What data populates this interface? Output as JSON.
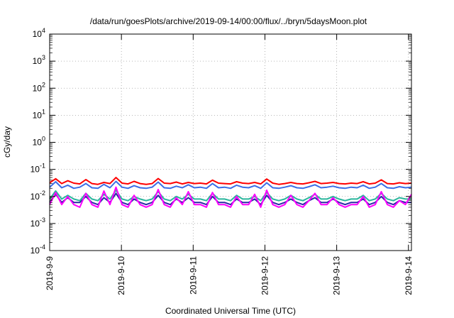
{
  "chart_data": {
    "type": "line",
    "title": "/data/run/goesPlots/archive/2019-09-14/00:00/flux/../bryn/5daysMoon.plot",
    "xlabel": "Coordinated Universal Time (UTC)",
    "ylabel": "cGy/day",
    "y_scale": "log",
    "grid": true,
    "ylim": [
      0.0001,
      10000
    ],
    "y_ticks": [
      {
        "value": 0.0001,
        "base": "10",
        "exp": "-4"
      },
      {
        "value": 0.001,
        "base": "10",
        "exp": "-3"
      },
      {
        "value": 0.01,
        "base": "10",
        "exp": "-2"
      },
      {
        "value": 0.1,
        "base": "10",
        "exp": "-1"
      },
      {
        "value": 1,
        "base": "10",
        "exp": "0"
      },
      {
        "value": 10,
        "base": "10",
        "exp": "1"
      },
      {
        "value": 100,
        "base": "10",
        "exp": "2"
      },
      {
        "value": 1000,
        "base": "10",
        "exp": "3"
      },
      {
        "value": 10000,
        "base": "10",
        "exp": "4"
      }
    ],
    "xlim": [
      "2019-09-09",
      "2019-09-14 01:00"
    ],
    "x_ticks": [
      "2019-9-9",
      "2019-9-10",
      "2019-9-11",
      "2019-9-12",
      "2019-9-13",
      "2019-9-14"
    ],
    "series": [
      {
        "color": "#ff0000",
        "values": [
          0.032,
          0.045,
          0.03,
          0.038,
          0.031,
          0.029,
          0.042,
          0.03,
          0.028,
          0.033,
          0.03,
          0.05,
          0.031,
          0.029,
          0.036,
          0.03,
          0.028,
          0.03,
          0.046,
          0.031,
          0.03,
          0.034,
          0.029,
          0.033,
          0.03,
          0.031,
          0.029,
          0.04,
          0.031,
          0.03,
          0.029,
          0.035,
          0.031,
          0.03,
          0.033,
          0.029,
          0.044,
          0.031,
          0.028,
          0.03,
          0.033,
          0.03,
          0.029,
          0.032,
          0.036,
          0.03,
          0.031,
          0.033,
          0.03,
          0.029,
          0.031,
          0.03,
          0.035,
          0.029,
          0.031,
          0.041,
          0.03,
          0.029,
          0.032,
          0.03,
          0.031
        ]
      },
      {
        "color": "#3c6ee6",
        "values": [
          0.022,
          0.035,
          0.021,
          0.026,
          0.02,
          0.022,
          0.03,
          0.021,
          0.02,
          0.028,
          0.021,
          0.036,
          0.022,
          0.02,
          0.025,
          0.021,
          0.02,
          0.022,
          0.034,
          0.021,
          0.02,
          0.024,
          0.021,
          0.027,
          0.021,
          0.022,
          0.02,
          0.03,
          0.021,
          0.022,
          0.02,
          0.026,
          0.022,
          0.021,
          0.025,
          0.02,
          0.032,
          0.021,
          0.02,
          0.022,
          0.025,
          0.021,
          0.02,
          0.023,
          0.027,
          0.021,
          0.022,
          0.024,
          0.021,
          0.02,
          0.022,
          0.021,
          0.026,
          0.02,
          0.022,
          0.03,
          0.021,
          0.02,
          0.023,
          0.021,
          0.022
        ]
      },
      {
        "color": "#2ab59c",
        "values": [
          0.008,
          0.016,
          0.008,
          0.011,
          0.008,
          0.007,
          0.013,
          0.008,
          0.007,
          0.012,
          0.008,
          0.017,
          0.008,
          0.007,
          0.01,
          0.008,
          0.007,
          0.008,
          0.015,
          0.008,
          0.007,
          0.01,
          0.008,
          0.012,
          0.008,
          0.008,
          0.007,
          0.013,
          0.008,
          0.008,
          0.007,
          0.011,
          0.008,
          0.008,
          0.01,
          0.007,
          0.014,
          0.008,
          0.007,
          0.008,
          0.011,
          0.008,
          0.007,
          0.009,
          0.012,
          0.008,
          0.008,
          0.01,
          0.008,
          0.007,
          0.008,
          0.008,
          0.011,
          0.007,
          0.008,
          0.013,
          0.008,
          0.007,
          0.009,
          0.008,
          0.008
        ]
      },
      {
        "color": "#2a2aa5",
        "values": [
          0.006,
          0.012,
          0.006,
          0.009,
          0.006,
          0.006,
          0.01,
          0.006,
          0.005,
          0.009,
          0.006,
          0.013,
          0.006,
          0.005,
          0.008,
          0.006,
          0.005,
          0.006,
          0.011,
          0.006,
          0.005,
          0.008,
          0.006,
          0.009,
          0.006,
          0.006,
          0.005,
          0.01,
          0.006,
          0.006,
          0.005,
          0.008,
          0.006,
          0.006,
          0.008,
          0.005,
          0.011,
          0.006,
          0.005,
          0.006,
          0.008,
          0.006,
          0.005,
          0.007,
          0.009,
          0.006,
          0.006,
          0.008,
          0.006,
          0.005,
          0.006,
          0.006,
          0.008,
          0.005,
          0.006,
          0.01,
          0.006,
          0.005,
          0.007,
          0.006,
          0.006
        ]
      },
      {
        "color": "#ff00ff",
        "values": [
          0.005,
          0.014,
          0.005,
          0.01,
          0.005,
          0.004,
          0.013,
          0.005,
          0.004,
          0.016,
          0.005,
          0.022,
          0.005,
          0.004,
          0.011,
          0.005,
          0.004,
          0.005,
          0.018,
          0.005,
          0.004,
          0.009,
          0.005,
          0.015,
          0.005,
          0.005,
          0.004,
          0.014,
          0.005,
          0.005,
          0.004,
          0.01,
          0.005,
          0.005,
          0.012,
          0.004,
          0.017,
          0.005,
          0.004,
          0.005,
          0.011,
          0.005,
          0.004,
          0.007,
          0.013,
          0.005,
          0.005,
          0.009,
          0.005,
          0.004,
          0.005,
          0.005,
          0.01,
          0.004,
          0.005,
          0.015,
          0.005,
          0.004,
          0.007,
          0.005,
          0.012
        ]
      }
    ]
  }
}
